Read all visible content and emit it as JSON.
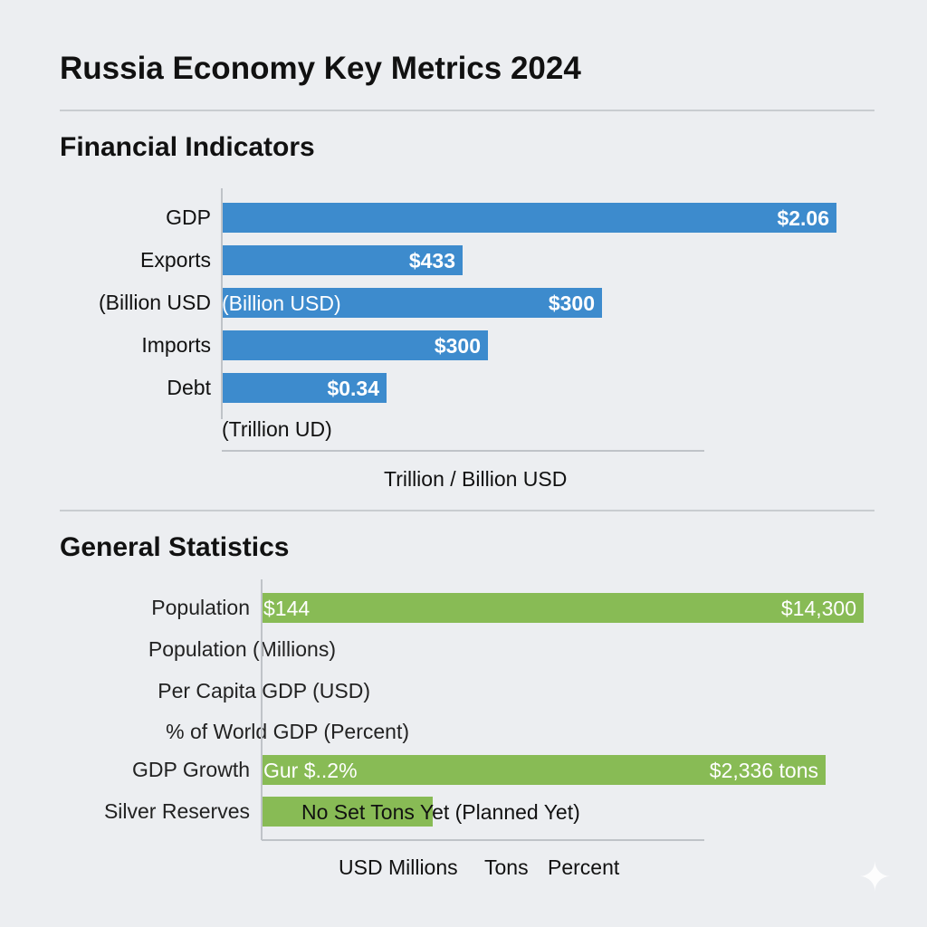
{
  "title": "Russia Economy Key Metrics 2024",
  "colors": {
    "financial": "#3d8bcd",
    "general": "#88bb55",
    "background": "#eceef1"
  },
  "chart_data": [
    {
      "type": "bar",
      "orientation": "horizontal",
      "title": "Financial Indicators",
      "xlabel": "Trillion / Billion USD",
      "categories": [
        "GDP",
        "Exports",
        "(Billion USD",
        "Imports",
        "Debt"
      ],
      "value_labels": [
        "$2.06",
        "$433",
        "$300",
        "$300",
        "$0.34"
      ],
      "inner_labels": [
        "",
        "",
        "(Billion USD)",
        "",
        ""
      ],
      "bar_fill_fraction": [
        0.97,
        0.38,
        0.6,
        0.42,
        0.26
      ],
      "footnote": "(Trillion UD)",
      "grid": false
    },
    {
      "type": "bar",
      "orientation": "horizontal",
      "title": "General Statistics",
      "categories": [
        "Population",
        "Population (Millions)",
        "Per Capita GDP (USD)",
        "% of World GDP (Percent)",
        "GDP Growth",
        "Silver Reserves"
      ],
      "left_labels": [
        "$144",
        "",
        "",
        "",
        "Gur $..2%",
        ""
      ],
      "value_labels": [
        "$14,300",
        "",
        "",
        "",
        "$2,336 tons",
        "No Set Tons Yet (Planned Yet)"
      ],
      "bar_fill_fraction": [
        0.95,
        0,
        0,
        0,
        0.89,
        0.27
      ],
      "xlabels": [
        "USD Millions",
        "Tons",
        "Percent"
      ],
      "grid": false
    }
  ]
}
